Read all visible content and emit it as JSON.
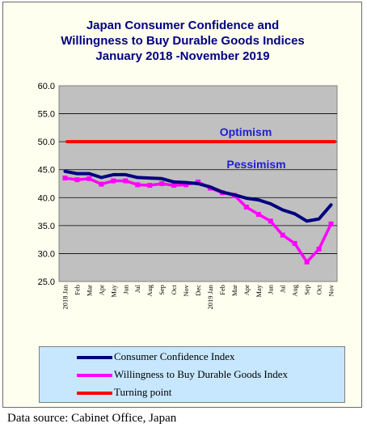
{
  "chart_data": {
    "type": "line",
    "title": [
      "Japan Consumer Confidence and",
      "Willingness to Buy Durable Goods Indices",
      "January 2018 -November 2019"
    ],
    "xlabel": "",
    "ylabel": "",
    "ylim": [
      25,
      60
    ],
    "yticks": [
      "25.0",
      "30.0",
      "35.0",
      "40.0",
      "45.0",
      "50.0",
      "55.0",
      "60.0"
    ],
    "categories": [
      "2018 Jan",
      "Feb",
      "Mar",
      "Apr",
      "May",
      "Jun",
      "Jul",
      "Aug",
      "Sep",
      "Oct",
      "Nov",
      "Dec",
      "2019 Jan",
      "Feb",
      "Mar",
      "Apr",
      "May",
      "Jun",
      "Jul",
      "Aug",
      "Sep",
      "Oct",
      "Nov"
    ],
    "series": [
      {
        "name": "Consumer Confidence Index",
        "color": "#000080",
        "values": [
          44.7,
          44.3,
          44.3,
          43.6,
          44.1,
          44.1,
          43.6,
          43.5,
          43.4,
          42.8,
          42.7,
          42.5,
          41.9,
          41.0,
          40.5,
          39.9,
          39.6,
          38.9,
          37.8,
          37.1,
          35.8,
          36.2,
          38.7
        ]
      },
      {
        "name": "Willingness to Buy Durable Goods Index",
        "color": "#ff00ff",
        "values": [
          43.5,
          43.2,
          43.4,
          42.4,
          43.0,
          43.0,
          42.3,
          42.2,
          42.5,
          42.2,
          42.3,
          42.8,
          41.7,
          40.9,
          40.4,
          38.3,
          37.0,
          35.8,
          33.3,
          31.8,
          28.5,
          30.8,
          35.3
        ]
      },
      {
        "name": "Turning point",
        "color": "#ff0000",
        "values": [
          50,
          50,
          50,
          50,
          50,
          50,
          50,
          50,
          50,
          50,
          50,
          50,
          50,
          50,
          50,
          50,
          50,
          50,
          50,
          50,
          50,
          50,
          50
        ]
      }
    ],
    "annotations": [
      "Optimism",
      "Pessimism"
    ],
    "grid": true,
    "legend_position": "bottom"
  },
  "source_note": "Data source: Cabinet Office, Japan"
}
